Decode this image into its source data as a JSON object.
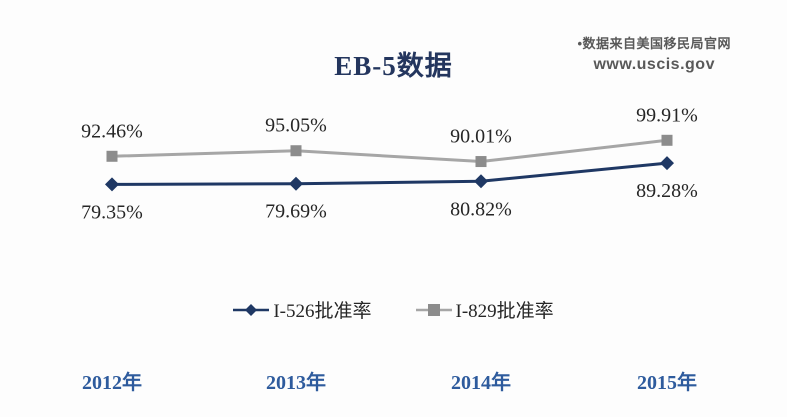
{
  "source": {
    "line1": "•数据来自美国移民局官网",
    "line2": "www.uscis.gov"
  },
  "chart_data": {
    "type": "line",
    "title": "EB-5数据",
    "categories": [
      "2012年",
      "2013年",
      "2014年",
      "2015年"
    ],
    "series": [
      {
        "name": "I-526批准率",
        "values": [
          79.35,
          79.69,
          80.82,
          89.28
        ],
        "labels": [
          "79.35%",
          "79.69%",
          "80.82%",
          "89.28%"
        ],
        "color": "#1f3864",
        "marker_color": "#1f3864",
        "marker": "diamond",
        "label_position": "below"
      },
      {
        "name": "I-829批准率",
        "values": [
          92.46,
          95.05,
          90.01,
          99.91
        ],
        "labels": [
          "92.46%",
          "95.05%",
          "90.01%",
          "99.91%"
        ],
        "color": "#a6a6a6",
        "marker_color": "#8c8c8c",
        "marker": "square",
        "label_position": "above"
      }
    ],
    "data_labels": true,
    "legend_position": "bottom",
    "grid": false,
    "axes_visible": false,
    "ylim": [
      67,
      104
    ],
    "accent_colors": {
      "year_label_blue": "#2e5b9d",
      "title_navy": "#24365e",
      "source_gray": "#595959"
    }
  }
}
